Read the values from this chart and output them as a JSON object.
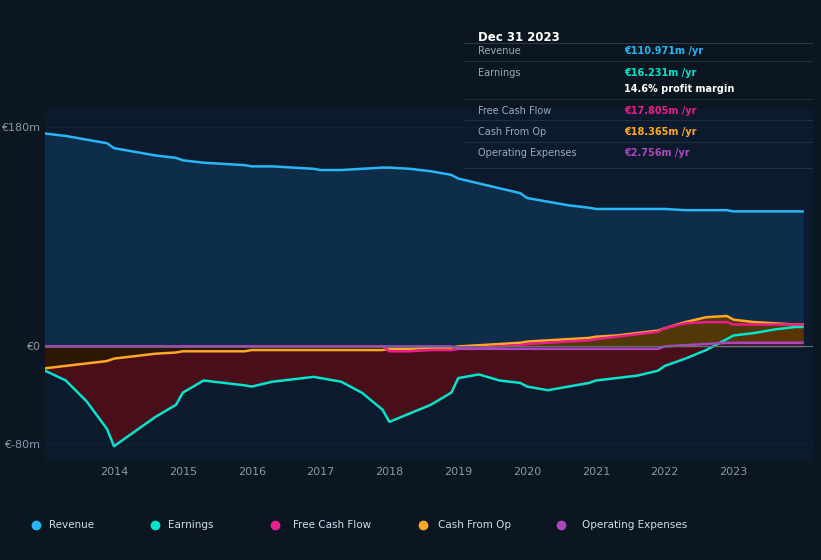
{
  "bg_color": "#0c1620",
  "plot_bg_color": "#0c1a2e",
  "title_box": {
    "date": "Dec 31 2023",
    "rows": [
      {
        "label": "Revenue",
        "value": "€110.971m /yr",
        "value_color": "#29b6f6"
      },
      {
        "label": "Earnings",
        "value": "€16.231m /yr",
        "value_color": "#00e5cc"
      },
      {
        "label": "",
        "value": "14.6% profit margin",
        "value_color": "#ffffff"
      },
      {
        "label": "Free Cash Flow",
        "value": "€17.805m /yr",
        "value_color": "#e91e8c"
      },
      {
        "label": "Cash From Op",
        "value": "€18.365m /yr",
        "value_color": "#ffa726"
      },
      {
        "label": "Operating Expenses",
        "value": "€2.756m /yr",
        "value_color": "#ab47bc"
      }
    ]
  },
  "years": [
    2013.0,
    2013.3,
    2013.6,
    2013.9,
    2014.0,
    2014.3,
    2014.6,
    2014.9,
    2015.0,
    2015.3,
    2015.6,
    2015.9,
    2016.0,
    2016.3,
    2016.6,
    2016.9,
    2017.0,
    2017.3,
    2017.6,
    2017.9,
    2018.0,
    2018.3,
    2018.6,
    2018.9,
    2019.0,
    2019.3,
    2019.6,
    2019.9,
    2020.0,
    2020.3,
    2020.6,
    2020.9,
    2021.0,
    2021.3,
    2021.6,
    2021.9,
    2022.0,
    2022.3,
    2022.6,
    2022.9,
    2023.0,
    2023.3,
    2023.6,
    2023.9,
    2024.0
  ],
  "revenue": [
    175,
    173,
    170,
    167,
    163,
    160,
    157,
    155,
    153,
    151,
    150,
    149,
    148,
    148,
    147,
    146,
    145,
    145,
    146,
    147,
    147,
    146,
    144,
    141,
    138,
    134,
    130,
    126,
    122,
    119,
    116,
    114,
    113,
    113,
    113,
    113,
    113,
    112,
    112,
    112,
    111,
    111,
    111,
    111,
    111
  ],
  "earnings": [
    -20,
    -28,
    -45,
    -68,
    -82,
    -70,
    -58,
    -48,
    -38,
    -28,
    -30,
    -32,
    -33,
    -29,
    -27,
    -25,
    -26,
    -29,
    -38,
    -52,
    -62,
    -55,
    -48,
    -38,
    -26,
    -23,
    -28,
    -30,
    -33,
    -36,
    -33,
    -30,
    -28,
    -26,
    -24,
    -20,
    -16,
    -10,
    -3,
    6,
    9,
    11,
    14,
    16,
    16
  ],
  "free_cash_flow": [
    0,
    0,
    0,
    0,
    0,
    0,
    0,
    0,
    0,
    0,
    0,
    0,
    0,
    0,
    0,
    0,
    0,
    0,
    0,
    0,
    -4,
    -4,
    -3,
    -3,
    -2,
    -1,
    0,
    1,
    2,
    3,
    4,
    5,
    6,
    8,
    10,
    12,
    15,
    19,
    20,
    20,
    18,
    18,
    18,
    18,
    18
  ],
  "cash_from_op": [
    -18,
    -16,
    -14,
    -12,
    -10,
    -8,
    -6,
    -5,
    -4,
    -4,
    -4,
    -4,
    -3,
    -3,
    -3,
    -3,
    -3,
    -3,
    -3,
    -3,
    -2,
    -2,
    -1,
    -1,
    0,
    1,
    2,
    3,
    4,
    5,
    6,
    7,
    8,
    9,
    11,
    13,
    15,
    20,
    24,
    25,
    22,
    20,
    19,
    18,
    18
  ],
  "operating_expenses": [
    0,
    0,
    0,
    0,
    0,
    0,
    0,
    0,
    0,
    0,
    0,
    0,
    0,
    0,
    0,
    0,
    0,
    0,
    0,
    0,
    0,
    0,
    0,
    0,
    -2,
    -2,
    -2,
    -2,
    -2,
    -2,
    -2,
    -2,
    -2,
    -2,
    -2,
    -2,
    0,
    1,
    2,
    3,
    3,
    3,
    3,
    3,
    3
  ],
  "ylim": [
    -95,
    195
  ],
  "yticks": [
    -80,
    0,
    180
  ],
  "ytick_labels": [
    "€-80m",
    "€0",
    "€180m"
  ],
  "xlim": [
    2013.0,
    2024.15
  ],
  "xticks": [
    2014,
    2015,
    2016,
    2017,
    2018,
    2019,
    2020,
    2021,
    2022,
    2023
  ],
  "revenue_color": "#29b6f6",
  "revenue_fill": "#0d2d4a",
  "earnings_color": "#00e5cc",
  "earnings_fill": "#4a0d1a",
  "free_cash_flow_color": "#e91e8c",
  "cash_from_op_color": "#ffa726",
  "cash_from_op_fill_pos": "#5a3a00",
  "cash_from_op_fill_neg": "#2a1800",
  "operating_expenses_color": "#ab47bc",
  "operating_expenses_fill_pos": "#3a1545",
  "zero_line_color": "#607080",
  "grid_color": "#152535",
  "legend_items": [
    {
      "label": "Revenue",
      "color": "#29b6f6"
    },
    {
      "label": "Earnings",
      "color": "#00e5cc"
    },
    {
      "label": "Free Cash Flow",
      "color": "#e91e8c"
    },
    {
      "label": "Cash From Op",
      "color": "#ffa726"
    },
    {
      "label": "Operating Expenses",
      "color": "#ab47bc"
    }
  ]
}
